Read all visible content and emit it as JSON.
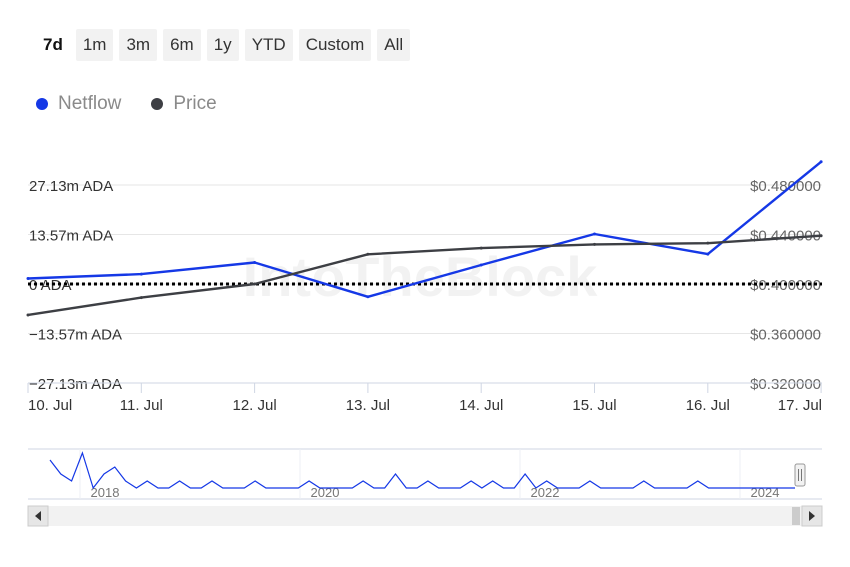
{
  "range_selector": {
    "buttons": [
      "7d",
      "1m",
      "3m",
      "6m",
      "1y",
      "YTD",
      "Custom",
      "All"
    ],
    "active": "7d"
  },
  "legend": {
    "items": [
      {
        "name": "Netflow",
        "color": "#1538e6"
      },
      {
        "name": "Price",
        "color": "#3d3f44"
      }
    ]
  },
  "watermark": "IntoTheBlock",
  "chart_data": {
    "type": "line",
    "x": [
      "10. Jul",
      "11. Jul",
      "12. Jul",
      "13. Jul",
      "14. Jul",
      "15. Jul",
      "16. Jul",
      "17. Jul"
    ],
    "x_ticks": [
      "10. Jul",
      "11. Jul",
      "12. Jul",
      "13. Jul",
      "14. Jul",
      "15. Jul",
      "16. Jul",
      "17. Jul"
    ],
    "left_axis": {
      "tick_values": [
        27.13,
        13.57,
        0,
        -13.57,
        -27.13
      ],
      "tick_labels": [
        "27.13m ADA",
        "13.57m ADA",
        "0 ADA",
        "−13.57m ADA",
        "−27.13m ADA"
      ],
      "range": [
        -27.13,
        27.13
      ]
    },
    "right_axis": {
      "tick_values": [
        0.48,
        0.44,
        0.4,
        0.36,
        0.32
      ],
      "tick_labels": [
        "$0.480000",
        "$0.440000",
        "$0.400000",
        "$0.360000",
        "$0.320000"
      ],
      "range": [
        0.32,
        0.48
      ]
    },
    "series": [
      {
        "name": "Netflow",
        "axis": "left",
        "color": "#1538e6",
        "x": [
          0,
          1,
          2,
          3,
          4,
          5,
          6,
          7
        ],
        "values": [
          1.5,
          2.7,
          5.9,
          -3.5,
          5.2,
          13.7,
          8.2,
          33.5
        ]
      },
      {
        "name": "Price",
        "axis": "right",
        "color": "#3d3f44",
        "x": [
          0,
          1,
          2,
          3,
          4,
          5,
          6,
          7
        ],
        "values": [
          0.375,
          0.389,
          0.4,
          0.424,
          0.429,
          0.432,
          0.433,
          0.439
        ]
      }
    ],
    "reference_line": {
      "axis": "left",
      "value": 0,
      "style": "dotted"
    },
    "navigator": {
      "year_labels": [
        "2018",
        "2020",
        "2022",
        "2024"
      ],
      "values": [
        5,
        3,
        2,
        6,
        1,
        3,
        4,
        2,
        1,
        2,
        1,
        1,
        2,
        1,
        1,
        2,
        1,
        1,
        1,
        2,
        1,
        1,
        1,
        1,
        2,
        1,
        1,
        1,
        1,
        2,
        1,
        1,
        3,
        1,
        1,
        2,
        1,
        1,
        1,
        2,
        1,
        2,
        1,
        1,
        3,
        1,
        2,
        1,
        1,
        1,
        2,
        1,
        1,
        1,
        1,
        2,
        1,
        1,
        1,
        1,
        2,
        1,
        1,
        1,
        1,
        1,
        1,
        1,
        1,
        1
      ]
    },
    "grid": true,
    "legend_position": "top-left"
  }
}
